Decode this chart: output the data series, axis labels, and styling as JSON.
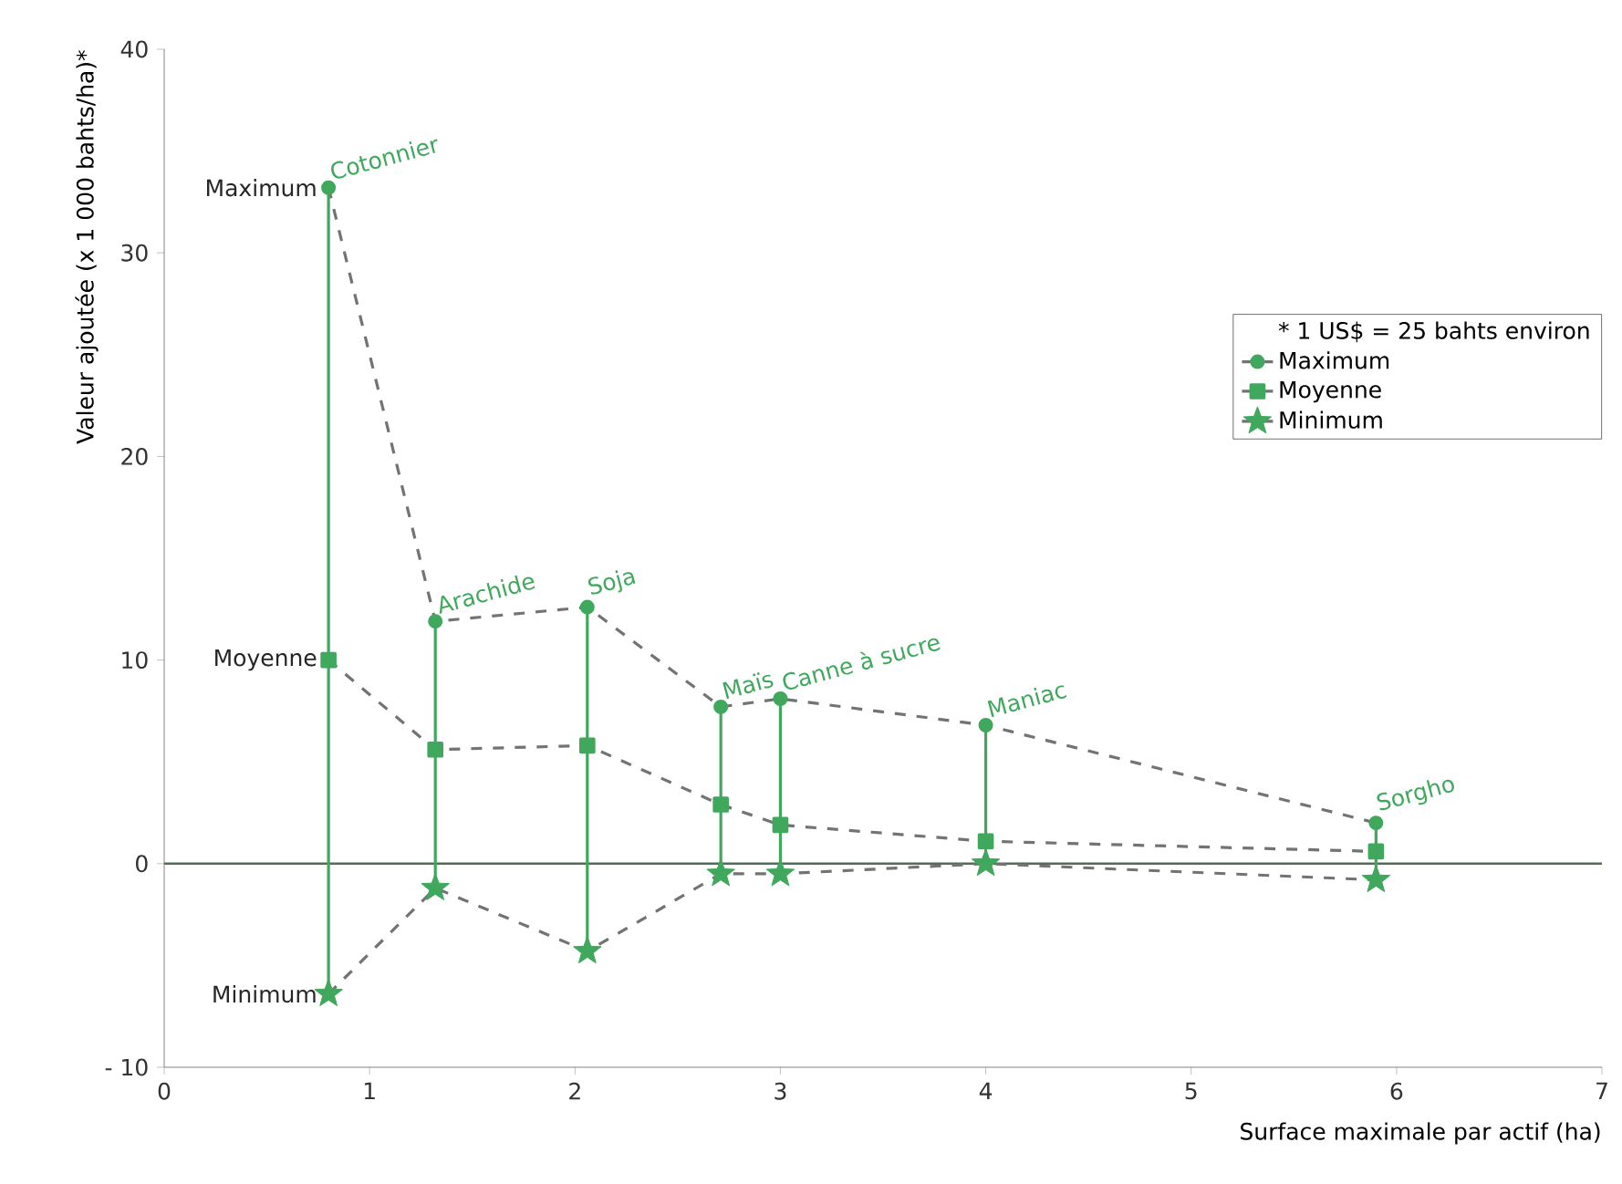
{
  "chart_data": {
    "type": "line",
    "xlabel": "Surface maximale par actif (ha)",
    "ylabel": "Valeur ajoutée (x 1 000 bahts/ha)*",
    "x": [
      0.8,
      1.32,
      2.06,
      2.71,
      3.0,
      4.0,
      5.9
    ],
    "series": [
      {
        "name": "Maximum",
        "color": "#3fa85c",
        "marker": "circle",
        "line_style": "dashed",
        "values": [
          33.2,
          11.9,
          12.6,
          7.7,
          8.1,
          6.8,
          2.0
        ]
      },
      {
        "name": "Moyenne",
        "color": "#3fa85c",
        "marker": "square",
        "line_style": "dashed",
        "values": [
          10.0,
          5.6,
          5.8,
          2.9,
          1.9,
          1.1,
          0.6
        ],
        "errors": [
          [
            -6.4,
            33.2
          ],
          [
            -1.2,
            11.9
          ],
          [
            -4.3,
            12.6
          ],
          [
            -0.5,
            7.7
          ],
          [
            -0.5,
            8.1
          ],
          [
            0.0,
            6.8
          ],
          [
            -0.8,
            2.0
          ]
        ]
      },
      {
        "name": "Minimum",
        "color": "#3fa85c",
        "marker": "star",
        "line_style": "dashed",
        "values": [
          -6.4,
          -1.2,
          -4.3,
          -0.5,
          -0.5,
          0.0,
          -0.8
        ]
      }
    ],
    "xlim": [
      0,
      7
    ],
    "xticks": [
      0,
      1,
      2,
      3,
      4,
      5,
      6,
      7
    ],
    "ylim": [
      -10,
      40
    ],
    "yticks": [
      {
        "value": -10,
        "label": "- 10"
      },
      0,
      10,
      20,
      30,
      40
    ],
    "ref_lines": [
      {
        "axis": "y",
        "value": 0,
        "color": "#4f6e55"
      }
    ],
    "legend": "right",
    "grid": false,
    "annotations": [
      "* 1 US$ = 25 bahts environ",
      {
        "text": "Maximum",
        "x": 0.8,
        "y": 33.2
      },
      {
        "text": "Moyenne",
        "x": 0.8,
        "y": 10.0
      },
      {
        "text": "Minimum",
        "x": 0.8,
        "y": -6.4
      },
      {
        "text": "Cotonnier",
        "x": 0.8,
        "y": 33.2
      },
      {
        "text": "Arachide",
        "x": 1.32,
        "y": 11.9
      },
      {
        "text": "Soja",
        "x": 2.06,
        "y": 12.6
      },
      {
        "text": "Maïs",
        "x": 2.71,
        "y": 7.7
      },
      {
        "text": "Canne à sucre",
        "x": 3.0,
        "y": 8.1
      },
      {
        "text": "Maniac",
        "x": 4.0,
        "y": 6.8
      },
      {
        "text": "Sorgho",
        "x": 5.9,
        "y": 2.0
      }
    ]
  }
}
